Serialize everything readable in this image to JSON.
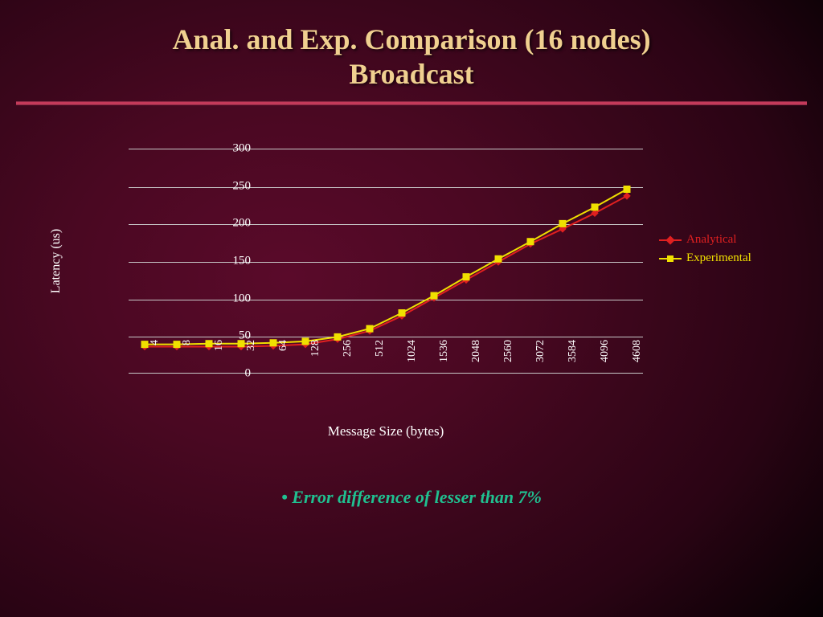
{
  "title_line1": "Anal. and Exp. Comparison (16 nodes)",
  "title_line2": "Broadcast",
  "title_color": "#f0d090",
  "bullet_text": "• Error difference of lesser than 7%",
  "bullet_color": "#20c090",
  "chart": {
    "type": "line",
    "xlabel": "Message Size (bytes)",
    "ylabel": "Latency (us)",
    "ylim": [
      0,
      300
    ],
    "ytick_step": 50,
    "categories": [
      "4",
      "8",
      "16",
      "32",
      "64",
      "128",
      "256",
      "512",
      "1024",
      "1536",
      "2048",
      "2560",
      "3072",
      "3584",
      "4096",
      "4608"
    ],
    "grid_color": "#c8c8c8",
    "series": [
      {
        "name": "Analytical",
        "color": "#e02020",
        "marker": "diamond",
        "marker_size": 8,
        "line_width": 2,
        "values": [
          37,
          37,
          37,
          37,
          38,
          40,
          47,
          58,
          78,
          102,
          126,
          150,
          174,
          194,
          215,
          238
        ]
      },
      {
        "name": "Experimental",
        "color": "#f0e000",
        "marker": "square",
        "marker_size": 8,
        "line_width": 2,
        "values": [
          40,
          40,
          41,
          41,
          42,
          44,
          50,
          61,
          82,
          105,
          130,
          154,
          177,
          201,
          223,
          247
        ]
      }
    ]
  }
}
